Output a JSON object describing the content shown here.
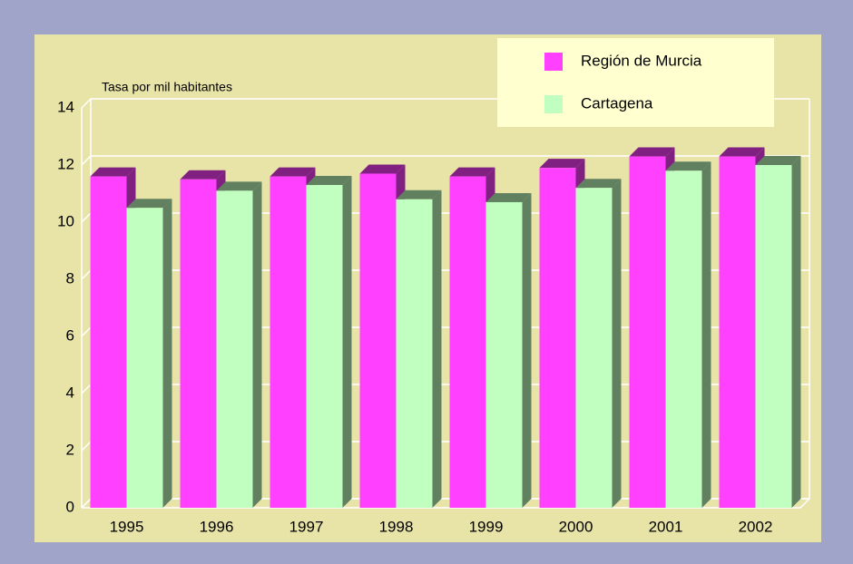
{
  "chart_data": {
    "type": "bar3d",
    "y_axis_label": "Tasa por mil habitantes",
    "categories": [
      "1995",
      "1996",
      "1997",
      "1998",
      "1999",
      "2000",
      "2001",
      "2002"
    ],
    "series": [
      {
        "name": "Región de Murcia",
        "color": "#ff40ff",
        "values": [
          11.6,
          11.5,
          11.6,
          11.7,
          11.6,
          11.9,
          12.3,
          12.3
        ]
      },
      {
        "name": "Cartagena",
        "color": "#c0ffc0",
        "values": [
          10.5,
          11.1,
          11.3,
          10.8,
          10.7,
          11.2,
          11.8,
          12.0
        ]
      }
    ],
    "ylim": [
      0,
      14
    ],
    "yticks": [
      0,
      2,
      4,
      6,
      8,
      10,
      12,
      14
    ],
    "grid": true,
    "legend": "top-right"
  }
}
